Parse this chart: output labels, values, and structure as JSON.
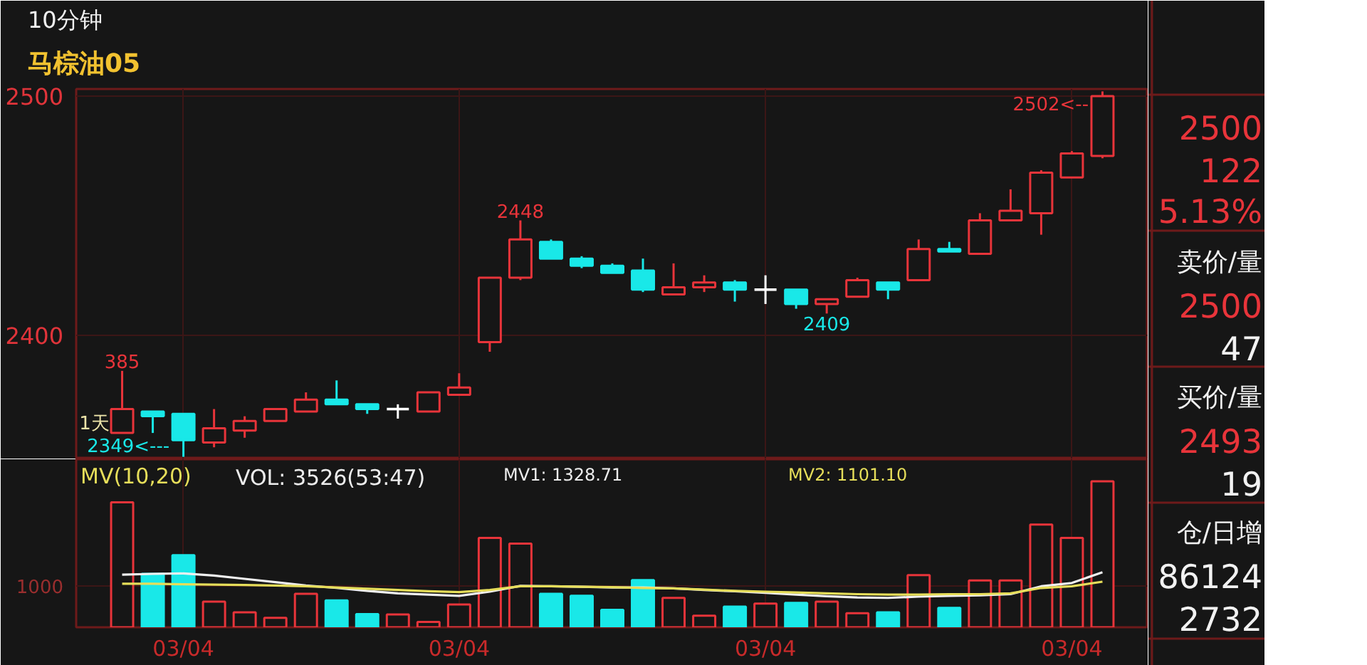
{
  "chart_data": [
    {
      "type": "candlestick",
      "title": "10分钟",
      "subtitle": "马棕油05",
      "categories": [
        null,
        null,
        null,
        null,
        null,
        null,
        null,
        null,
        null,
        null,
        null,
        null,
        null,
        null,
        null,
        null,
        null,
        null,
        null,
        null,
        null,
        null,
        null,
        null,
        null,
        null,
        null,
        null,
        null,
        null,
        null,
        null,
        null
      ],
      "ohlc": [
        [
          2359,
          2385,
          2359,
          2369
        ],
        [
          2368,
          2368,
          2359,
          2366
        ],
        [
          2367,
          2367,
          2349,
          2356
        ],
        [
          2355,
          2369,
          2353,
          2361
        ],
        [
          2360,
          2366,
          2357,
          2364
        ],
        [
          2364,
          2369,
          2364,
          2369
        ],
        [
          2368,
          2376,
          2368,
          2373
        ],
        [
          2373,
          2381,
          2371,
          2371
        ],
        [
          2371,
          2371,
          2367,
          2369
        ],
        [
          2369,
          2371,
          2365,
          2369
        ],
        [
          2368,
          2376,
          2368,
          2376
        ],
        [
          2375,
          2384,
          2375,
          2378
        ],
        [
          2397,
          2424,
          2393,
          2424
        ],
        [
          2424,
          2448,
          2423,
          2440
        ],
        [
          2439,
          2440,
          2432,
          2432
        ],
        [
          2432,
          2433,
          2428,
          2429
        ],
        [
          2429,
          2430,
          2426,
          2426
        ],
        [
          2427,
          2432,
          2418,
          2419
        ],
        [
          2417,
          2430,
          2417,
          2420
        ],
        [
          2420,
          2425,
          2418,
          2422
        ],
        [
          2422,
          2423,
          2414,
          2419
        ],
        [
          2419,
          2425,
          2413,
          2419
        ],
        [
          2419,
          2419,
          2411,
          2413
        ],
        [
          2413,
          2415,
          2409,
          2415
        ],
        [
          2416,
          2424,
          2416,
          2423
        ],
        [
          2422,
          2422,
          2415,
          2419
        ],
        [
          2423,
          2440,
          2423,
          2436
        ],
        [
          2436,
          2439,
          2435,
          2435
        ],
        [
          2434,
          2451,
          2434,
          2448
        ],
        [
          2448,
          2461,
          2448,
          2452
        ],
        [
          2451,
          2469,
          2442,
          2468
        ],
        [
          2466,
          2477,
          2466,
          2476
        ],
        [
          2475,
          2502,
          2474,
          2500
        ]
      ],
      "colors": [
        "#e8343a",
        "#19e8e8",
        "#19e8e8",
        "#e8343a",
        "#e8343a",
        "#e8343a",
        "#e8343a",
        "#19e8e8",
        "#19e8e8",
        "#ffffff",
        "#e8343a",
        "#e8343a",
        "#e8343a",
        "#e8343a",
        "#19e8e8",
        "#19e8e8",
        "#19e8e8",
        "#19e8e8",
        "#e8343a",
        "#e8343a",
        "#19e8e8",
        "#ffffff",
        "#19e8e8",
        "#e8343a",
        "#e8343a",
        "#19e8e8",
        "#e8343a",
        "#19e8e8",
        "#e8343a",
        "#e8343a",
        "#e8343a",
        "#e8343a",
        "#e8343a"
      ],
      "ylim": [
        2348,
        2503
      ],
      "yticks": [
        2500,
        2400
      ],
      "grid": true,
      "tick_labels": "y",
      "annotations": [
        {
          "text": "385",
          "y": 2385
        },
        {
          "text": "2448",
          "y": 2448
        },
        {
          "text": "2409",
          "y": 2409
        },
        "2349<---",
        "2502<--",
        "1天"
      ]
    },
    {
      "type": "bar",
      "title": "MV(10,20)",
      "categories": [
        null,
        null,
        "03/04",
        null,
        null,
        null,
        null,
        null,
        null,
        null,
        null,
        "03/04",
        null,
        null,
        null,
        null,
        null,
        null,
        null,
        null,
        null,
        "03/04",
        null,
        null,
        null,
        null,
        null,
        null,
        null,
        null,
        null,
        "03/04",
        null
      ],
      "series": [
        {
          "type": "bar",
          "values": [
            3020,
            1290,
            1740,
            620,
            360,
            230,
            810,
            650,
            320,
            310,
            130,
            550,
            2160,
            2020,
            810,
            760,
            420,
            1140,
            710,
            280,
            500,
            570,
            590,
            620,
            340,
            360,
            1260,
            470,
            1130,
            1130,
            2480,
            2160,
            3526
          ],
          "colors": [
            "#e8343a",
            "#19e8e8",
            "#19e8e8",
            "#e8343a",
            "#e8343a",
            "#e8343a",
            "#e8343a",
            "#19e8e8",
            "#19e8e8",
            "#e8343a",
            "#e8343a",
            "#e8343a",
            "#e8343a",
            "#e8343a",
            "#19e8e8",
            "#19e8e8",
            "#19e8e8",
            "#19e8e8",
            "#e8343a",
            "#e8343a",
            "#19e8e8",
            "#e8343a",
            "#19e8e8",
            "#e8343a",
            "#e8343a",
            "#19e8e8",
            "#e8343a",
            "#19e8e8",
            "#e8343a",
            "#e8343a",
            "#e8343a",
            "#e8343a",
            "#e8343a"
          ]
        },
        {
          "type": "line",
          "color": "#f0f0f0",
          "values": [
            1270,
            1290,
            1300,
            1250,
            1170,
            1090,
            1010,
            950,
            880,
            820,
            790,
            760,
            860,
            1000,
            990,
            980,
            960,
            960,
            940,
            900,
            870,
            830,
            790,
            750,
            720,
            710,
            740,
            760,
            770,
            800,
            990,
            1070,
            1328.71
          ]
        },
        {
          "type": "line",
          "color": "#e6de5a",
          "values": [
            1050,
            1050,
            1040,
            1030,
            1020,
            1010,
            990,
            960,
            930,
            900,
            870,
            850,
            900,
            990,
            990,
            980,
            970,
            950,
            940,
            910,
            880,
            860,
            840,
            820,
            800,
            790,
            790,
            800,
            800,
            820,
            950,
            990,
            1101.1
          ]
        }
      ],
      "ylim": [
        0,
        4060
      ],
      "yticks": [
        1000
      ],
      "grid": true,
      "annotations": [
        "VOL: 3526(53:47)",
        "MV1: 1328.71",
        "MV2: 1101.10"
      ]
    },
    {
      "type": "other",
      "annotations": [
        "2500",
        "122",
        "5.13%",
        "卖价/量",
        "2500",
        "47",
        "买价/量",
        "2493",
        "19",
        "仓/日增",
        "86124",
        "2732"
      ]
    }
  ]
}
